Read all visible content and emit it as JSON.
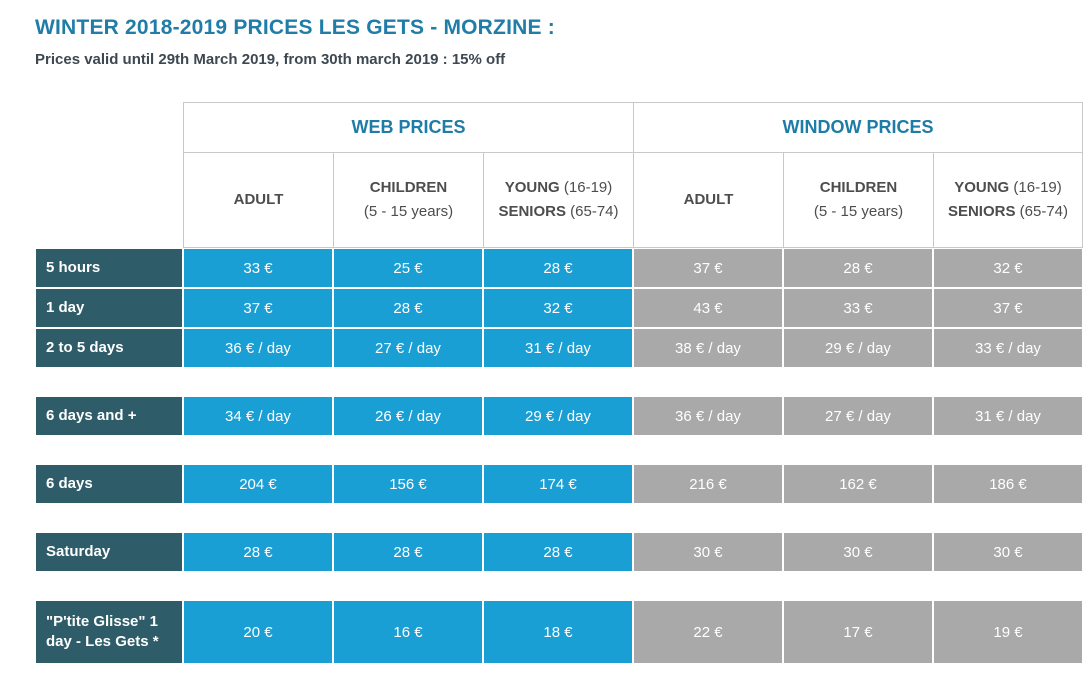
{
  "page": {
    "title": "WINTER 2018-2019 PRICES LES GETS - MORZINE :",
    "subtitle": "Prices valid until 29th March 2019, from 30th march 2019 : 15% off"
  },
  "colors": {
    "title_accent": "#1f7da8",
    "subtitle_text": "#3d4852",
    "group_header_text": "#1e7ca6",
    "row_label_bg": "#2e5c68",
    "web_price_bg": "#199fd4",
    "window_price_bg": "#a9a9a9",
    "header_border": "#c9c9c9",
    "cell_text": "#ffffff"
  },
  "table": {
    "groups": [
      {
        "label": "WEB PRICES"
      },
      {
        "label": "WINDOW PRICES"
      }
    ],
    "columns": [
      {
        "bold1": "ADULT",
        "normal1": "",
        "bold2": "",
        "normal2": ""
      },
      {
        "bold1": "CHILDREN",
        "normal1": "(5 - 15 years)",
        "bold2": "",
        "normal2": ""
      },
      {
        "bold1": "YOUNG",
        "normal1": " (16-19) ",
        "bold2": "SENIORS",
        "normal2": " (65-74)"
      }
    ],
    "rows": [
      {
        "label": "5 hours",
        "web": [
          "33 €",
          "25 €",
          "28 €"
        ],
        "window": [
          "37 €",
          "28 €",
          "32 €"
        ]
      },
      {
        "label": "1 day",
        "web": [
          "37 €",
          "28 €",
          "32 €"
        ],
        "window": [
          "43 €",
          "33 €",
          "37 €"
        ]
      },
      {
        "label": "2 to 5 days",
        "web": [
          "36 € / day",
          "27 € / day",
          "31 € / day"
        ],
        "window": [
          "38 € / day",
          "29 € / day",
          "33 € / day"
        ]
      },
      {
        "label": "6 days and +",
        "web": [
          "34 € / day",
          "26 € / day",
          "29 € / day"
        ],
        "window": [
          "36 € / day",
          "27 € / day",
          "31 € / day"
        ]
      },
      {
        "label": "6 days",
        "web": [
          "204 €",
          "156 €",
          "174 €"
        ],
        "window": [
          "216 €",
          "162 €",
          "186 €"
        ]
      },
      {
        "label": "Saturday",
        "web": [
          "28 €",
          "28 €",
          "28 €"
        ],
        "window": [
          "30 €",
          "30 €",
          "30 €"
        ]
      },
      {
        "label": "\"P'tite Glisse\" 1 day - Les Gets *",
        "web": [
          "20 €",
          "16 €",
          "18 €"
        ],
        "window": [
          "22 €",
          "17 €",
          "19 €"
        ]
      }
    ]
  }
}
